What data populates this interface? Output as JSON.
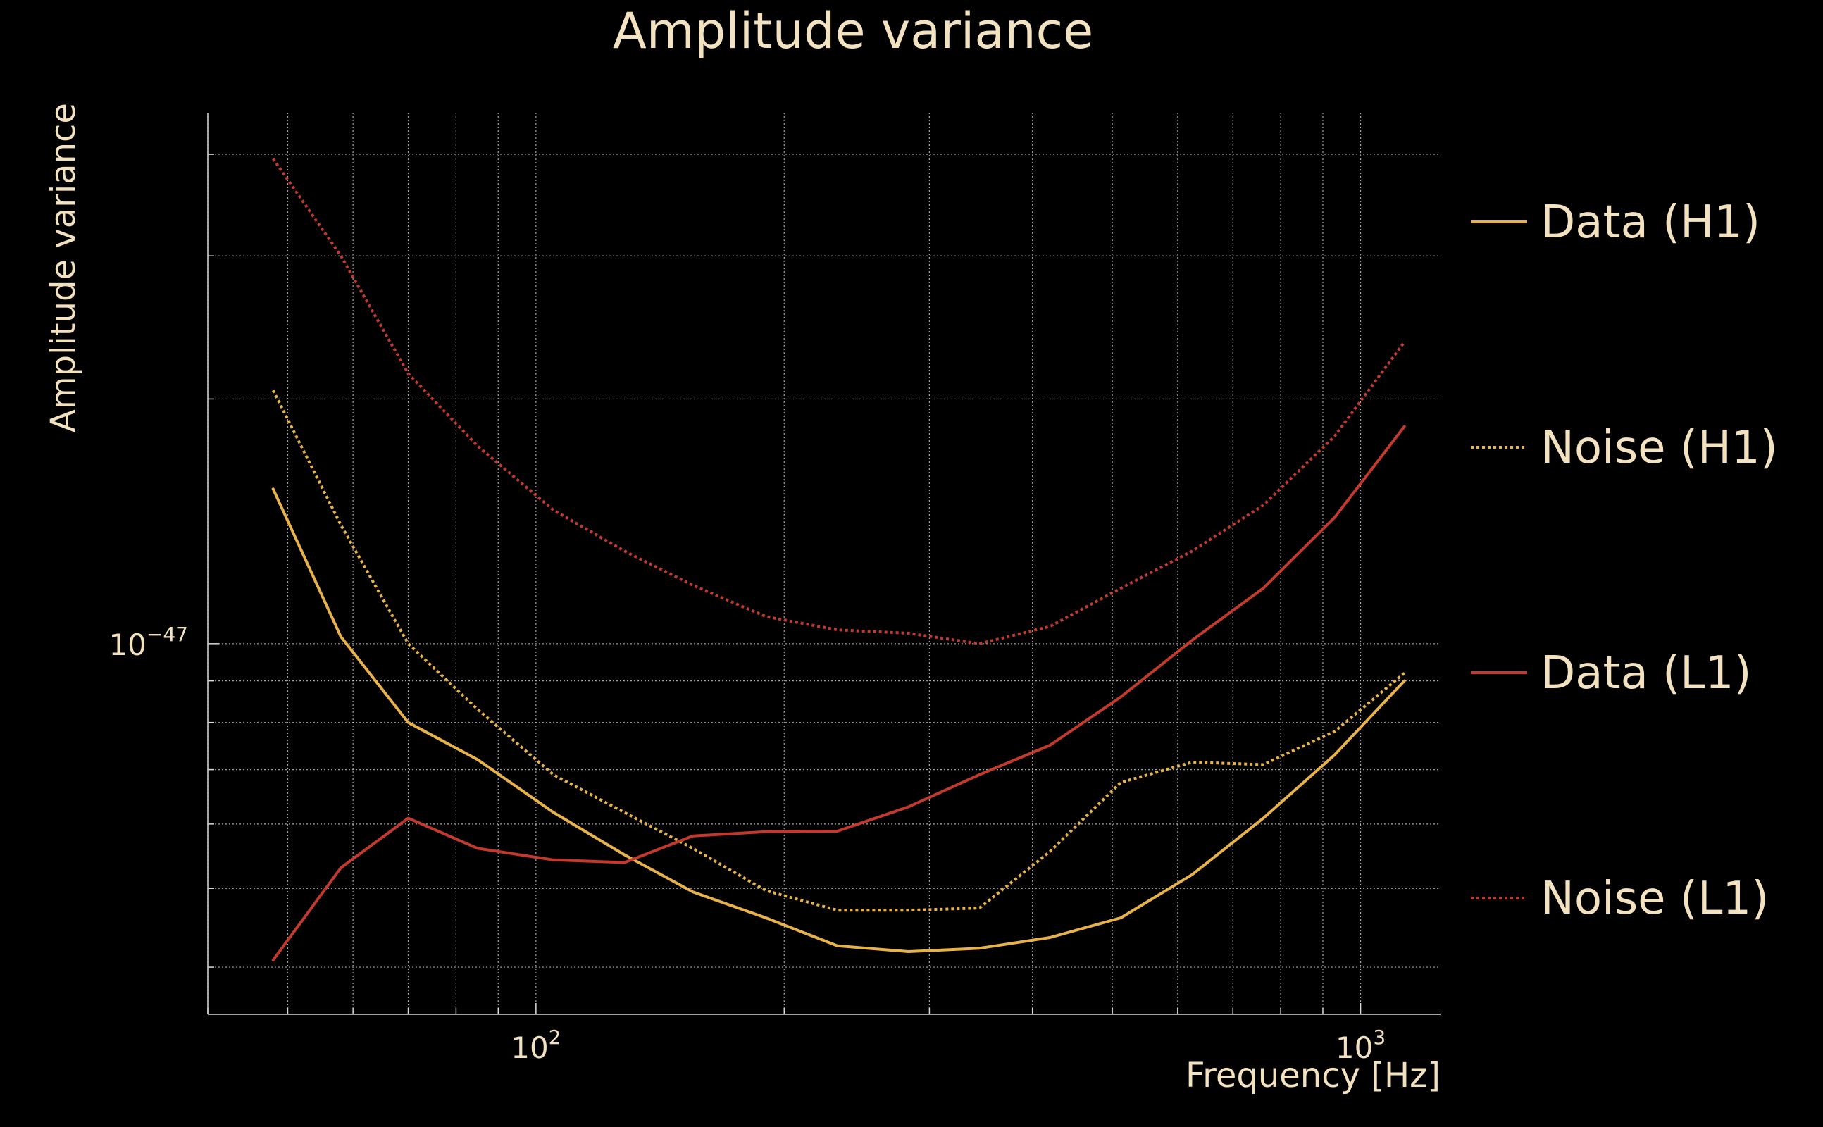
{
  "colors": {
    "background": "#000000",
    "text": "#f3e2c0",
    "grid": "#d8d8d8",
    "h1": "#e8b24a",
    "l1": "#c23a2e"
  },
  "chart_data": {
    "type": "line",
    "title": "Amplitude variance",
    "xlabel": "Frequency [Hz]",
    "ylabel": "Amplitude variance",
    "xscale": "log",
    "yscale": "log",
    "xlim": [
      40,
      1250
    ],
    "ylim": [
      3.5e-48,
      4.5e-47
    ],
    "grid": true,
    "legend_position": "right",
    "x_ticks": [
      {
        "value": 100,
        "base": "10",
        "exp": "2"
      },
      {
        "value": 1000,
        "base": "10",
        "exp": "3"
      }
    ],
    "y_ticks": [
      {
        "value": 1e-47,
        "base": "10",
        "exp": "−47"
      }
    ],
    "x": [
      48,
      58,
      70,
      85,
      105,
      128,
      155,
      190,
      232,
      283,
      345,
      420,
      512,
      625,
      762,
      930,
      1130
    ],
    "series": [
      {
        "name": "Data (H1)",
        "color": "h1",
        "style": "solid",
        "values": [
          1.55e-47,
          1.02e-47,
          8e-48,
          7.2e-48,
          6.2e-48,
          5.5e-48,
          4.95e-48,
          4.6e-48,
          4.25e-48,
          4.18e-48,
          4.22e-48,
          4.35e-48,
          4.6e-48,
          5.2e-48,
          6.1e-48,
          7.3e-48,
          9e-48
        ]
      },
      {
        "name": "Noise (H1)",
        "color": "h1",
        "style": "dotted",
        "values": [
          2.05e-47,
          1.4e-47,
          1e-47,
          8.3e-48,
          6.9e-48,
          6.2e-48,
          5.6e-48,
          4.97e-48,
          4.7e-48,
          4.7e-48,
          4.73e-48,
          5.55e-48,
          6.75e-48,
          7.15e-48,
          7.1e-48,
          7.8e-48,
          9.2e-48
        ]
      },
      {
        "name": "Data (L1)",
        "color": "l1",
        "style": "solid",
        "values": [
          4.08e-48,
          5.3e-48,
          6.1e-48,
          5.6e-48,
          5.42e-48,
          5.38e-48,
          5.8e-48,
          5.87e-48,
          5.88e-48,
          6.3e-48,
          6.9e-48,
          7.5e-48,
          8.6e-48,
          1.01e-47,
          1.17e-47,
          1.43e-47,
          1.85e-47
        ]
      },
      {
        "name": "Noise (L1)",
        "color": "l1",
        "style": "dotted",
        "values": [
          3.95e-47,
          3e-47,
          2.15e-47,
          1.75e-47,
          1.46e-47,
          1.3e-47,
          1.18e-47,
          1.08e-47,
          1.04e-47,
          1.03e-47,
          1e-47,
          1.05e-47,
          1.17e-47,
          1.3e-47,
          1.48e-47,
          1.8e-47,
          2.35e-47
        ]
      }
    ]
  }
}
